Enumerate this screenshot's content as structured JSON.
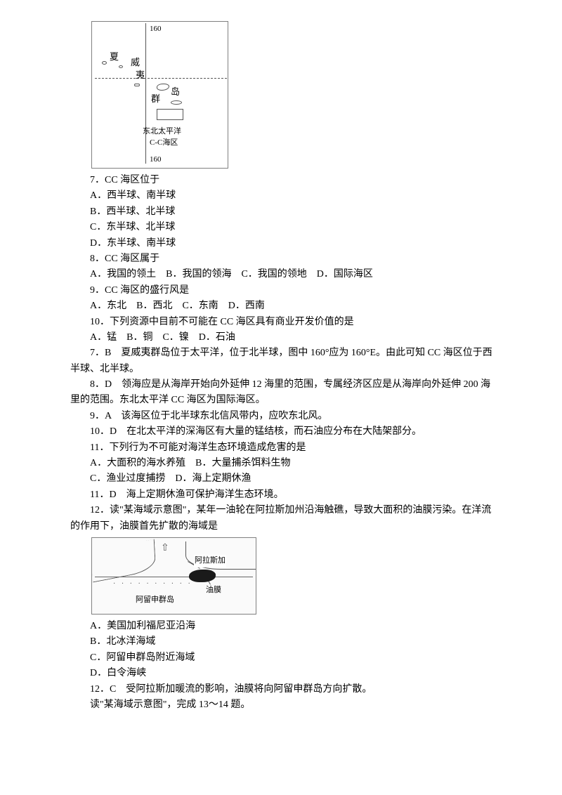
{
  "figure1": {
    "top_label": "160",
    "bottom_label": "160",
    "char_xia": "夏",
    "char_wei": "威",
    "char_yi": "夷",
    "char_qun": "群",
    "char_dao": "岛",
    "label_ne": "东北太平洋",
    "label_cc": "C-C海区"
  },
  "q7": {
    "stem": "7．CC 海区位于",
    "a": "A．西半球、南半球",
    "b": "B．西半球、北半球",
    "c": "C．东半球、北半球",
    "d": "D．东半球、南半球"
  },
  "q8": {
    "stem": "8．CC 海区属于",
    "opts": "A．我国的领土　B．我国的领海　C．我国的领地　D．国际海区"
  },
  "q9": {
    "stem": "9．CC 海区的盛行风是",
    "opts": "A．东北　B．西北　C．东南　D．西南"
  },
  "q10": {
    "stem": "10．下列资源中目前不可能在 CC 海区具有商业开发价值的是",
    "opts": "A．锰　B．铜　C．镍　D．石油"
  },
  "ans7": "7．B　夏威夷群岛位于太平洋，位于北半球，图中 160°应为 160°E。由此可知 CC 海区位于西半球、北半球。",
  "ans8": "8．D　领海应是从海岸开始向外延伸 12 海里的范围，专属经济区应是从海岸向外延伸 200 海里的范围。东北太平洋 CC 海区为国际海区。",
  "ans9": "9．A　该海区位于北半球东北信风带内，应吹东北风。",
  "ans10": "10．D　在北太平洋的深海区有大量的锰结核，而石油应分布在大陆架部分。",
  "q11": {
    "stem": "11．下列行为不可能对海洋生态环境造成危害的是",
    "ab": "A．大面积的海水养殖　B．大量捕杀饵料生物",
    "cd": "C．渔业过度捕捞　D．海上定期休渔"
  },
  "ans11": "11．D　海上定期休渔可保护海洋生态环境。",
  "q12": {
    "stem": "12．读\"某海域示意图\"，某年一油轮在阿拉斯加州沿海触礁，导致大面积的油膜污染。在洋流的作用下，油膜首先扩散的海域是"
  },
  "figure2": {
    "alaska": "阿拉斯加",
    "youmo": "油膜",
    "aleutian": "阿留申群岛",
    "dots": "· · · · · · · · · ·",
    "arrow": "⇧"
  },
  "q12opts": {
    "a": "A．美国加利福尼亚沿海",
    "b": "B．北冰洋海域",
    "c": "C．阿留申群岛附近海域",
    "d": "D．白令海峡"
  },
  "ans12": "12．C　受阿拉斯加暖流的影响，油膜将向阿留申群岛方向扩散。",
  "tail": "读\"某海域示意图\"，完成 13～14 题。"
}
